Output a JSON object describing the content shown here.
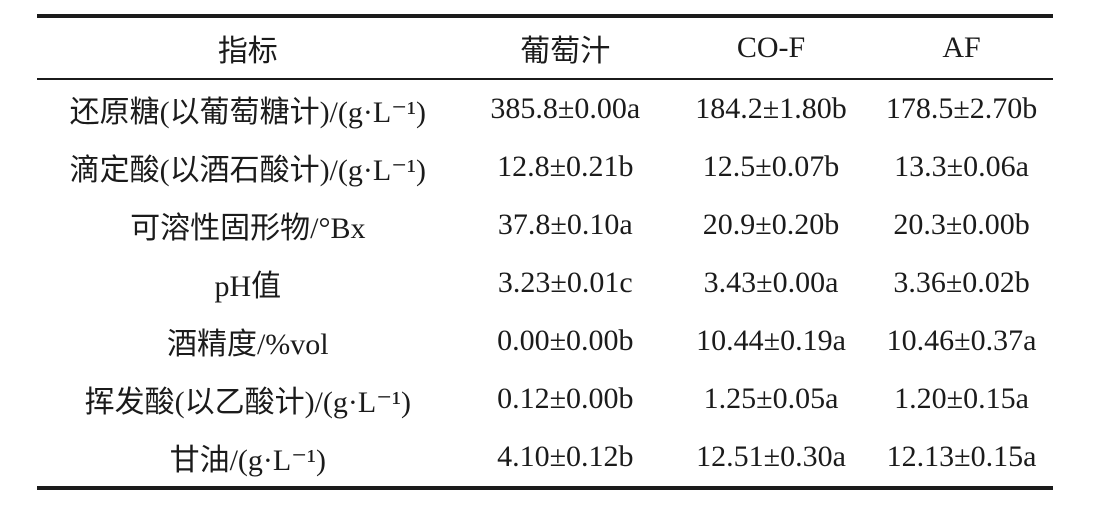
{
  "table": {
    "columns": [
      {
        "label": "指标"
      },
      {
        "label": "葡萄汁"
      },
      {
        "label": "CO-F"
      },
      {
        "label": "AF"
      }
    ],
    "rows": [
      {
        "indicator": "还原糖(以葡萄糖计)/(g·L⁻¹)",
        "values": [
          "385.8±0.00a",
          "184.2±1.80b",
          "178.5±2.70b"
        ]
      },
      {
        "indicator": "滴定酸(以酒石酸计)/(g·L⁻¹)",
        "values": [
          "12.8±0.21b",
          "12.5±0.07b",
          "13.3±0.06a"
        ]
      },
      {
        "indicator": "可溶性固形物/°Bx",
        "values": [
          "37.8±0.10a",
          "20.9±0.20b",
          "20.3±0.00b"
        ]
      },
      {
        "indicator": "pH值",
        "values": [
          "3.23±0.01c",
          "3.43±0.00a",
          "3.36±0.02b"
        ]
      },
      {
        "indicator": "酒精度/%vol",
        "values": [
          "0.00±0.00b",
          "10.44±0.19a",
          "10.46±0.37a"
        ]
      },
      {
        "indicator": "挥发酸(以乙酸计)/(g·L⁻¹)",
        "values": [
          "0.12±0.00b",
          "1.25±0.05a",
          "1.20±0.15a"
        ]
      },
      {
        "indicator": "甘油/(g·L⁻¹)",
        "values": [
          "4.10±0.12b",
          "12.51±0.30a",
          "12.13±0.15a"
        ]
      }
    ],
    "colors": {
      "text": "#1b1b1b",
      "rule": "#1b1b1b",
      "background": "#ffffff"
    }
  }
}
